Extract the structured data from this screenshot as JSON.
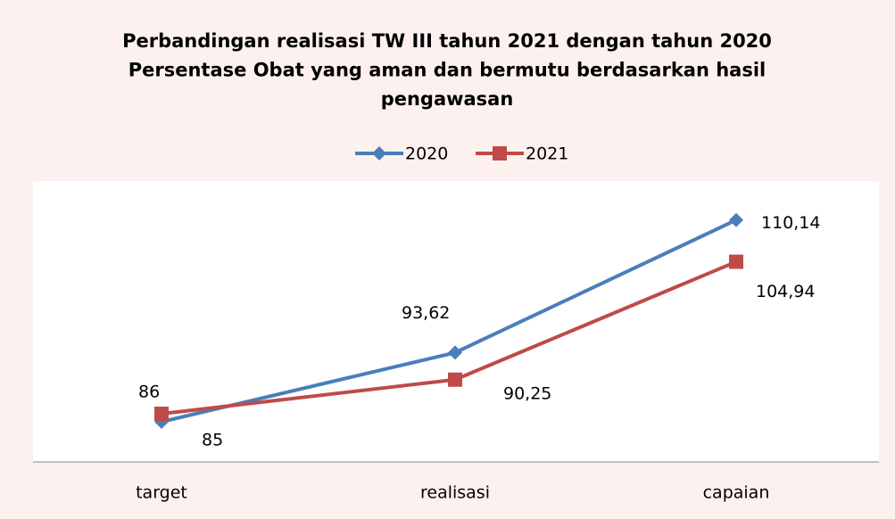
{
  "chart_data": {
    "type": "line",
    "title": [
      "Perbandingan realisasi TW III tahun 2021 dengan tahun 2020",
      "Persentase Obat yang aman dan bermutu berdasarkan hasil",
      "pengawasan"
    ],
    "categories": [
      "target",
      "realisasi",
      "capaian"
    ],
    "series": [
      {
        "name": "2020",
        "color": "#4a7ebb",
        "marker": "diamond",
        "values": [
          85,
          93.62,
          110.14
        ],
        "value_labels": [
          "85",
          "93,62",
          "110,14"
        ]
      },
      {
        "name": "2021",
        "color": "#be4b48",
        "marker": "square",
        "values": [
          86,
          90.25,
          104.94
        ],
        "value_labels": [
          "86",
          "90,25",
          "104,94"
        ]
      }
    ],
    "ylim": [
      80,
      115
    ],
    "legend": "top"
  }
}
